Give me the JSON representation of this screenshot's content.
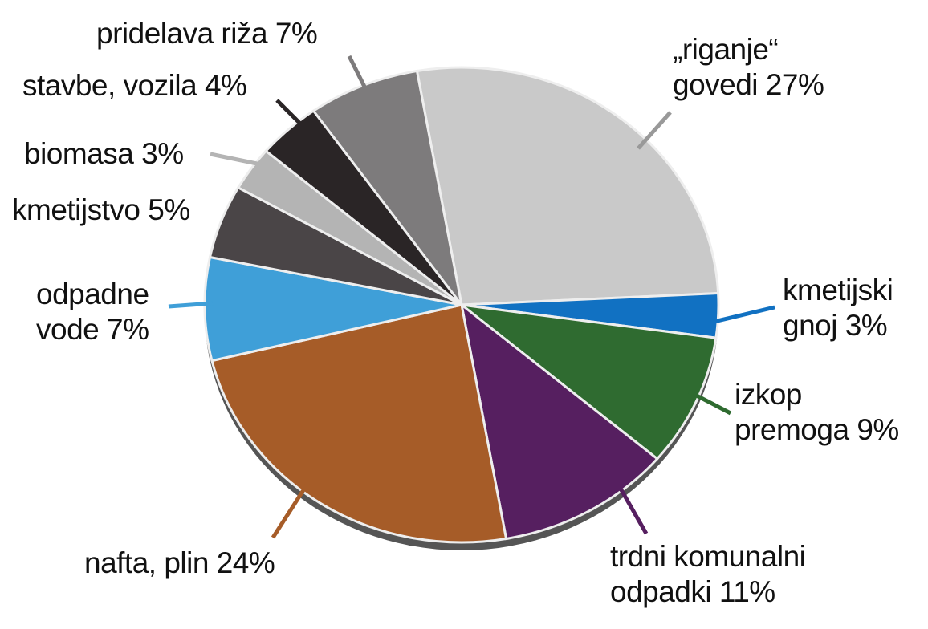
{
  "chart_data": {
    "type": "pie",
    "categories": [
      "„riganje“ govedi",
      "kmetijski gnoj",
      "izkop premoga",
      "trdni komunalni odpadki",
      "nafta, plin",
      "odpadne vode",
      "kmetijstvo",
      "biomasa",
      "stavbe, vozila",
      "pridelava riža"
    ],
    "values": [
      27,
      3,
      9,
      11,
      24,
      7,
      5,
      3,
      4,
      7
    ],
    "value_labels": [
      "27%",
      "3%",
      "9%",
      "11%",
      "24%",
      "7%",
      "5%",
      "3%",
      "4%",
      "7%"
    ],
    "colors": [
      "#c9c9c9",
      "#1171c2",
      "#2f6b30",
      "#561f60",
      "#a65c28",
      "#3f9fd8",
      "#4a4547",
      "#b4b4b4",
      "#2a2526",
      "#7d7b7c"
    ]
  }
}
